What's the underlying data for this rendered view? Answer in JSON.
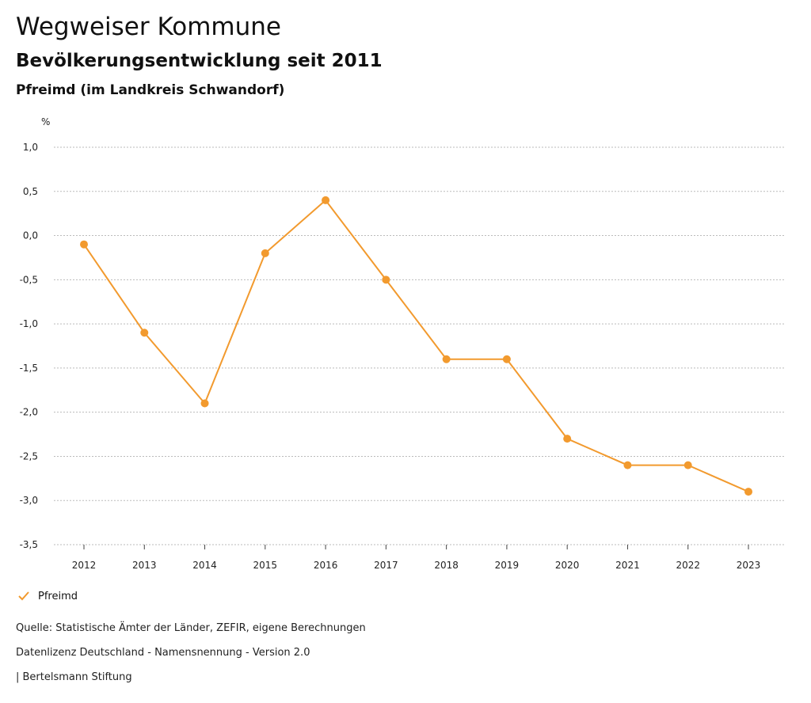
{
  "header": {
    "title": "Wegweiser Kommune",
    "subtitle": "Bevölkerungsentwicklung seit 2011",
    "region": "Pfreimd (im Landkreis Schwandorf)"
  },
  "legend": {
    "label": "Pfreimd",
    "icon": "checkmark-icon"
  },
  "footer": {
    "source": "Quelle: Statistische Ämter der Länder, ZEFIR, eigene Berechnungen",
    "license": "Datenlizenz Deutschland - Namensnennung - Version 2.0",
    "publisher": "| Bertelsmann Stiftung"
  },
  "colors": {
    "series": "#F29A2E",
    "grid": "#BBBBBB",
    "text": "#222222"
  },
  "chart_data": {
    "type": "line",
    "ylabel": "%",
    "ylim": [
      -3.5,
      1.0
    ],
    "yticks": [
      "1,0",
      "0,5",
      "0,0",
      "-0,5",
      "-1,0",
      "-1,5",
      "-2,0",
      "-2,5",
      "-3,0",
      "-3,5"
    ],
    "ytick_values": [
      1.0,
      0.5,
      0.0,
      -0.5,
      -1.0,
      -1.5,
      -2.0,
      -2.5,
      -3.0,
      -3.5
    ],
    "categories": [
      "2012",
      "2013",
      "2014",
      "2015",
      "2016",
      "2017",
      "2018",
      "2019",
      "2020",
      "2021",
      "2022",
      "2023"
    ],
    "series": [
      {
        "name": "Pfreimd",
        "values": [
          -0.1,
          -1.1,
          -1.9,
          -0.2,
          0.4,
          -0.5,
          -1.4,
          -1.4,
          -2.3,
          -2.6,
          -2.6,
          -2.9
        ]
      }
    ],
    "grid": true,
    "legend": "bottom-left"
  }
}
